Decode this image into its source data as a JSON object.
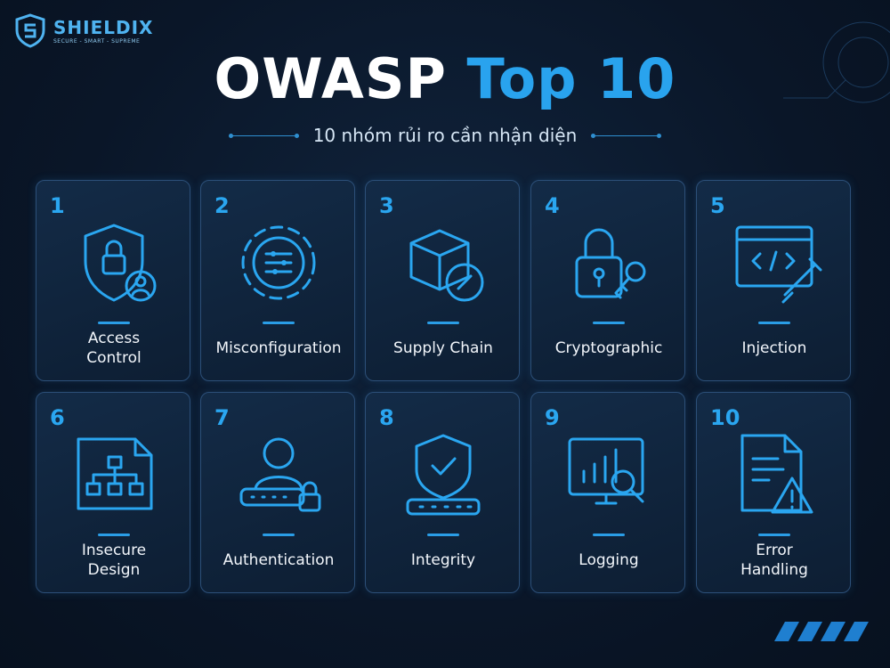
{
  "brand": {
    "name": "SHIELDIX",
    "tagline": "SECURE - SMART - SUPREME"
  },
  "header": {
    "title_main": "OWASP",
    "title_accent": "Top 10",
    "subtitle": "10 nhóm rủi ro cần nhận diện"
  },
  "cards": [
    {
      "number": "1",
      "label": [
        "Access",
        "Control"
      ]
    },
    {
      "number": "2",
      "label": [
        "Misconfiguration"
      ]
    },
    {
      "number": "3",
      "label": [
        "Supply Chain"
      ]
    },
    {
      "number": "4",
      "label": [
        "Cryptographic"
      ]
    },
    {
      "number": "5",
      "label": [
        "Injection"
      ]
    },
    {
      "number": "6",
      "label": [
        "Insecure",
        "Design"
      ]
    },
    {
      "number": "7",
      "label": [
        "Authentication"
      ]
    },
    {
      "number": "8",
      "label": [
        "Integrity"
      ]
    },
    {
      "number": "9",
      "label": [
        "Logging"
      ]
    },
    {
      "number": "10",
      "label": [
        "Error",
        "Handling"
      ]
    }
  ]
}
